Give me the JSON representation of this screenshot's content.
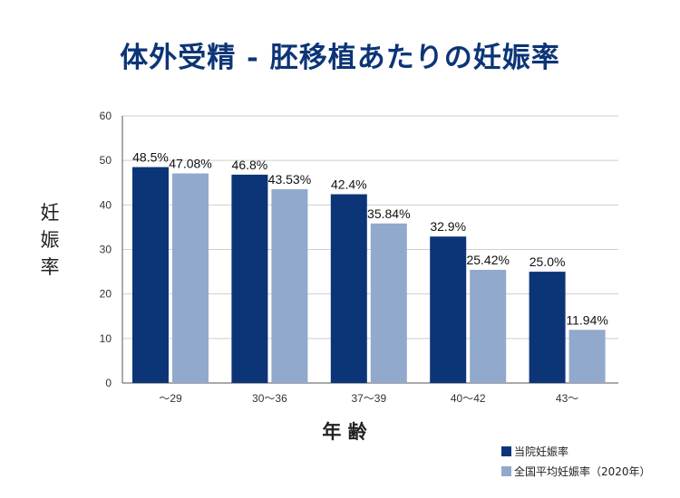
{
  "title": "体外受精 - 胚移植あたりの妊娠率",
  "chart_data": {
    "type": "bar",
    "title": "体外受精 - 胚移植あたりの妊娠率",
    "xlabel": "年 齢",
    "ylabel": "妊娠率",
    "ylim": [
      0,
      60
    ],
    "yticks": [
      0,
      10,
      20,
      30,
      40,
      50,
      60
    ],
    "grid": true,
    "legend_position": "bottom-right",
    "categories": [
      "～29",
      "30～36",
      "37～39",
      "40～42",
      "43～"
    ],
    "series": [
      {
        "name": "当院妊娠率",
        "color": "#0c3577",
        "values": [
          48.5,
          46.8,
          42.4,
          32.9,
          25.0
        ],
        "labels": [
          "48.5%",
          "46.8%",
          "42.4%",
          "32.9%",
          "25.0%"
        ]
      },
      {
        "name": "全国平均妊娠率（2020年）",
        "color": "#91a9cc",
        "values": [
          47.08,
          43.53,
          35.84,
          25.42,
          11.94
        ],
        "labels": [
          "47.08%",
          "43.53%",
          "35.84%",
          "25.42%",
          "11.94%"
        ]
      }
    ]
  }
}
